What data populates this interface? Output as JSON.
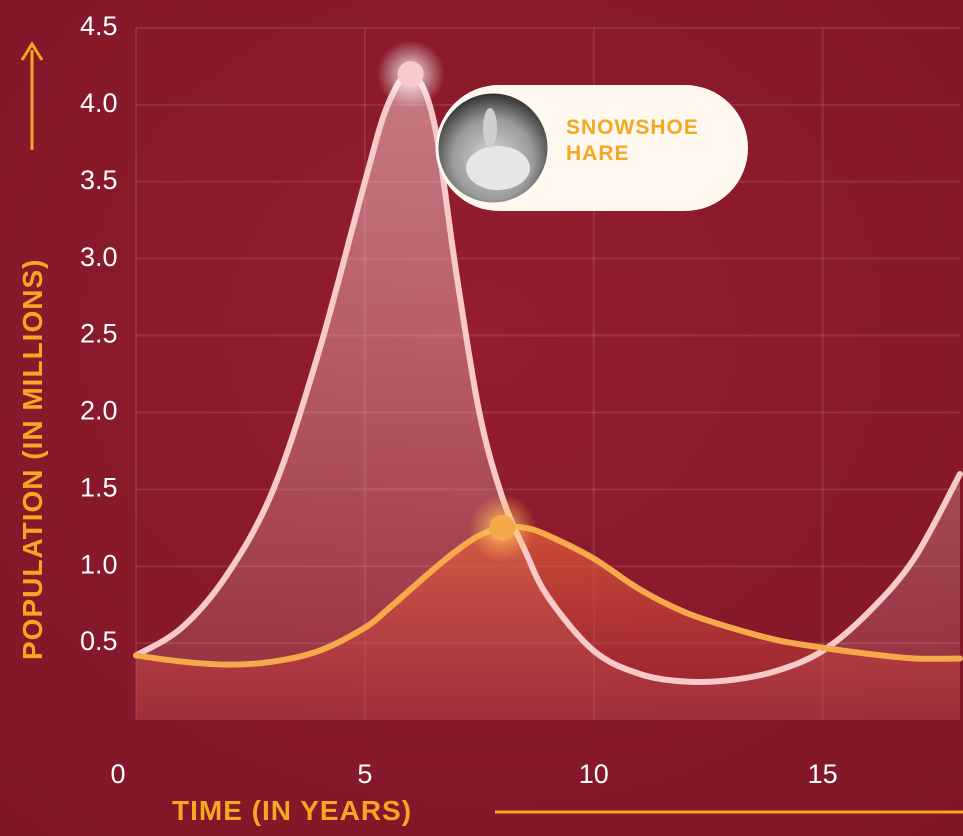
{
  "chart_data": {
    "type": "line",
    "x_label": "TIME (IN YEARS)",
    "y_label": "POPULATION (IN MILLIONS)",
    "x": [
      0,
      1,
      2,
      3,
      4,
      5,
      5.5,
      6,
      6.5,
      7,
      7.5,
      8,
      8.5,
      9,
      10,
      11,
      12,
      13,
      14,
      15,
      16,
      17,
      18
    ],
    "series": [
      {
        "name": "SNOWSHOE HARE",
        "color": "#f7c9c9",
        "values": [
          0.42,
          0.6,
          0.95,
          1.5,
          2.4,
          3.5,
          4.0,
          4.2,
          3.9,
          2.9,
          2.0,
          1.45,
          1.1,
          0.8,
          0.45,
          0.3,
          0.25,
          0.26,
          0.32,
          0.45,
          0.7,
          1.05,
          1.6
        ]
      },
      {
        "color": "#f5a94a",
        "values": [
          0.42,
          0.38,
          0.36,
          0.38,
          0.45,
          0.6,
          0.72,
          0.85,
          0.98,
          1.1,
          1.2,
          1.25,
          1.25,
          1.2,
          1.05,
          0.85,
          0.7,
          0.6,
          0.52,
          0.47,
          0.43,
          0.4,
          0.4
        ]
      }
    ],
    "xlim": [
      0,
      18
    ],
    "ylim": [
      0,
      4.5
    ],
    "xticks": [
      0,
      5,
      10,
      15
    ],
    "yticks": [
      0.5,
      {
        "value": 1,
        "label": "1.0"
      },
      1.5,
      {
        "value": 2,
        "label": "2.0"
      },
      2.5,
      {
        "value": 3,
        "label": "3.0"
      },
      3.5,
      {
        "value": 4,
        "label": "4.0"
      },
      4.5
    ],
    "grid": true
  }
}
